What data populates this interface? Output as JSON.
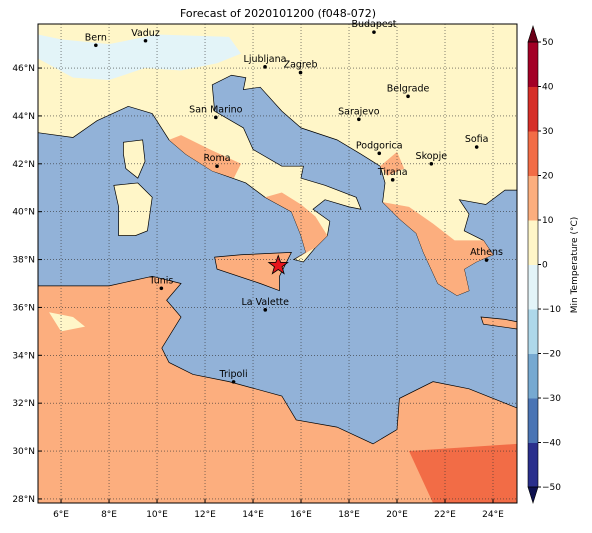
{
  "map": {
    "title": "Forecast of 2020101200 (f048-072)",
    "xlim": [
      5.04,
      25
    ],
    "ylim": [
      27.83,
      47.84
    ],
    "xticks": [
      {
        "value": 6,
        "label": "6°E"
      },
      {
        "value": 8,
        "label": "8°E"
      },
      {
        "value": 10,
        "label": "10°E"
      },
      {
        "value": 12,
        "label": "12°E"
      },
      {
        "value": 14,
        "label": "14°E"
      },
      {
        "value": 16,
        "label": "16°E"
      },
      {
        "value": 18,
        "label": "18°E"
      },
      {
        "value": 20,
        "label": "20°E"
      },
      {
        "value": 22,
        "label": "22°E"
      },
      {
        "value": 24,
        "label": "24°E"
      }
    ],
    "yticks": [
      {
        "value": 28,
        "label": "28°N"
      },
      {
        "value": 30,
        "label": "30°N"
      },
      {
        "value": 32,
        "label": "32°N"
      },
      {
        "value": 34,
        "label": "34°N"
      },
      {
        "value": 36,
        "label": "36°N"
      },
      {
        "value": 38,
        "label": "38°N"
      },
      {
        "value": 40,
        "label": "40°N"
      },
      {
        "value": 42,
        "label": "42°N"
      },
      {
        "value": 44,
        "label": "44°N"
      },
      {
        "value": 46,
        "label": "46°N"
      }
    ],
    "grid": true,
    "cities": [
      "Bern",
      "Vaduz",
      "Budapest",
      "Ljubljana",
      "Zagreb",
      "Belgrade",
      "San Marino",
      "Sarajevo",
      "Sofia",
      "Podgorica",
      "Skopje",
      "Roma",
      "Tirana",
      "Athens",
      "Tunis",
      "La Valette",
      "Tripoli"
    ],
    "colorbar": {
      "label": "Min Temperature (°C)",
      "ticks": [
        {
          "value": -50,
          "label": "−50"
        },
        {
          "value": -40,
          "label": "−40"
        },
        {
          "value": -30,
          "label": "−30"
        },
        {
          "value": -20,
          "label": "−20"
        },
        {
          "value": -10,
          "label": "−10"
        },
        0,
        10,
        20,
        30,
        40,
        50
      ],
      "colors": [
        "#2a2f8c",
        "#4a74b4",
        "#76a9d1",
        "#aed8ea",
        "#e3f4f8",
        "#fff6c8",
        "#fcae7e",
        "#f26c46",
        "#d62f28",
        "#a30026"
      ],
      "extend_colors": [
        "#0e1150",
        "#6b0018"
      ]
    }
  }
}
